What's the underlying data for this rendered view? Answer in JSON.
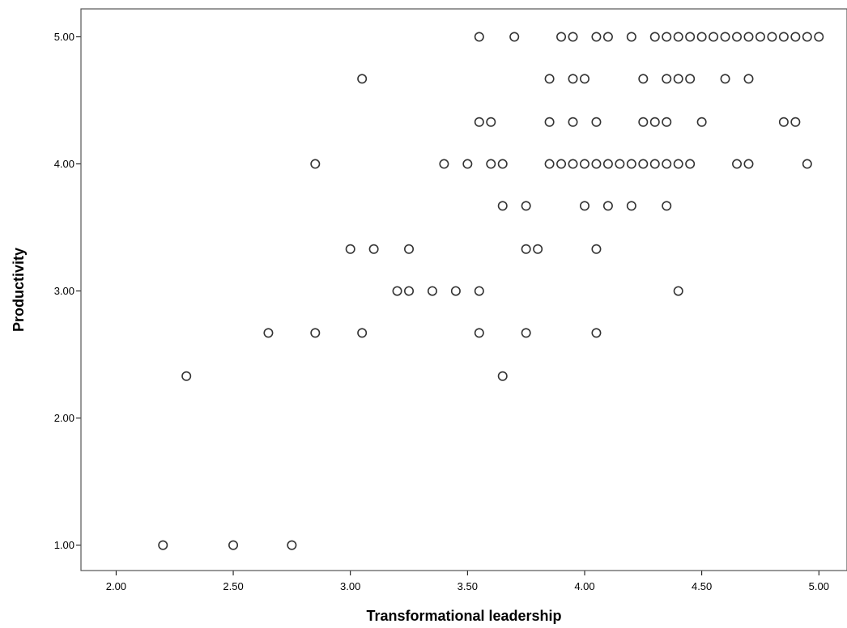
{
  "chart_data": {
    "type": "scatter",
    "title": "",
    "xlabel": "Transformational leadership",
    "ylabel": "Productivity",
    "xlim": [
      1.85,
      5.12
    ],
    "ylim": [
      0.8,
      5.22
    ],
    "x_ticks": [
      2.0,
      2.5,
      3.0,
      3.5,
      4.0,
      4.5,
      5.0
    ],
    "x_tick_labels": [
      "2.00",
      "2.50",
      "3.00",
      "3.50",
      "4.00",
      "4.50",
      "5.00"
    ],
    "y_ticks": [
      1.0,
      2.0,
      3.0,
      4.0,
      5.0
    ],
    "y_tick_labels": [
      "1.00",
      "2.00",
      "3.00",
      "4.00",
      "5.00"
    ],
    "grid": false,
    "marker": "open-circle",
    "points": [
      [
        3.55,
        5.0
      ],
      [
        3.7,
        5.0
      ],
      [
        3.9,
        5.0
      ],
      [
        3.95,
        5.0
      ],
      [
        4.05,
        5.0
      ],
      [
        4.1,
        5.0
      ],
      [
        4.2,
        5.0
      ],
      [
        4.3,
        5.0
      ],
      [
        4.35,
        5.0
      ],
      [
        4.4,
        5.0
      ],
      [
        4.45,
        5.0
      ],
      [
        4.5,
        5.0
      ],
      [
        4.55,
        5.0
      ],
      [
        4.6,
        5.0
      ],
      [
        4.65,
        5.0
      ],
      [
        4.7,
        5.0
      ],
      [
        4.75,
        5.0
      ],
      [
        4.8,
        5.0
      ],
      [
        4.85,
        5.0
      ],
      [
        4.9,
        5.0
      ],
      [
        4.95,
        5.0
      ],
      [
        5.0,
        5.0
      ],
      [
        3.05,
        4.67
      ],
      [
        3.85,
        4.67
      ],
      [
        3.95,
        4.67
      ],
      [
        4.0,
        4.67
      ],
      [
        4.25,
        4.67
      ],
      [
        4.35,
        4.67
      ],
      [
        4.4,
        4.67
      ],
      [
        4.45,
        4.67
      ],
      [
        4.6,
        4.67
      ],
      [
        4.7,
        4.67
      ],
      [
        3.55,
        4.33
      ],
      [
        3.6,
        4.33
      ],
      [
        3.85,
        4.33
      ],
      [
        3.95,
        4.33
      ],
      [
        4.05,
        4.33
      ],
      [
        4.25,
        4.33
      ],
      [
        4.3,
        4.33
      ],
      [
        4.35,
        4.33
      ],
      [
        4.5,
        4.33
      ],
      [
        4.85,
        4.33
      ],
      [
        4.9,
        4.33
      ],
      [
        2.85,
        4.0
      ],
      [
        3.4,
        4.0
      ],
      [
        3.5,
        4.0
      ],
      [
        3.6,
        4.0
      ],
      [
        3.65,
        4.0
      ],
      [
        3.85,
        4.0
      ],
      [
        3.9,
        4.0
      ],
      [
        3.95,
        4.0
      ],
      [
        4.0,
        4.0
      ],
      [
        4.05,
        4.0
      ],
      [
        4.1,
        4.0
      ],
      [
        4.15,
        4.0
      ],
      [
        4.2,
        4.0
      ],
      [
        4.25,
        4.0
      ],
      [
        4.3,
        4.0
      ],
      [
        4.35,
        4.0
      ],
      [
        4.4,
        4.0
      ],
      [
        4.45,
        4.0
      ],
      [
        4.65,
        4.0
      ],
      [
        4.7,
        4.0
      ],
      [
        4.95,
        4.0
      ],
      [
        3.65,
        3.67
      ],
      [
        3.75,
        3.67
      ],
      [
        4.0,
        3.67
      ],
      [
        4.1,
        3.67
      ],
      [
        4.2,
        3.67
      ],
      [
        4.35,
        3.67
      ],
      [
        3.0,
        3.33
      ],
      [
        3.1,
        3.33
      ],
      [
        3.25,
        3.33
      ],
      [
        3.75,
        3.33
      ],
      [
        3.8,
        3.33
      ],
      [
        4.05,
        3.33
      ],
      [
        3.2,
        3.0
      ],
      [
        3.25,
        3.0
      ],
      [
        3.35,
        3.0
      ],
      [
        3.45,
        3.0
      ],
      [
        3.55,
        3.0
      ],
      [
        4.4,
        3.0
      ],
      [
        2.65,
        2.67
      ],
      [
        2.85,
        2.67
      ],
      [
        3.05,
        2.67
      ],
      [
        3.55,
        2.67
      ],
      [
        3.75,
        2.67
      ],
      [
        4.05,
        2.67
      ],
      [
        2.3,
        2.33
      ],
      [
        3.65,
        2.33
      ],
      [
        2.2,
        1.0
      ],
      [
        2.5,
        1.0
      ],
      [
        2.75,
        1.0
      ]
    ]
  }
}
